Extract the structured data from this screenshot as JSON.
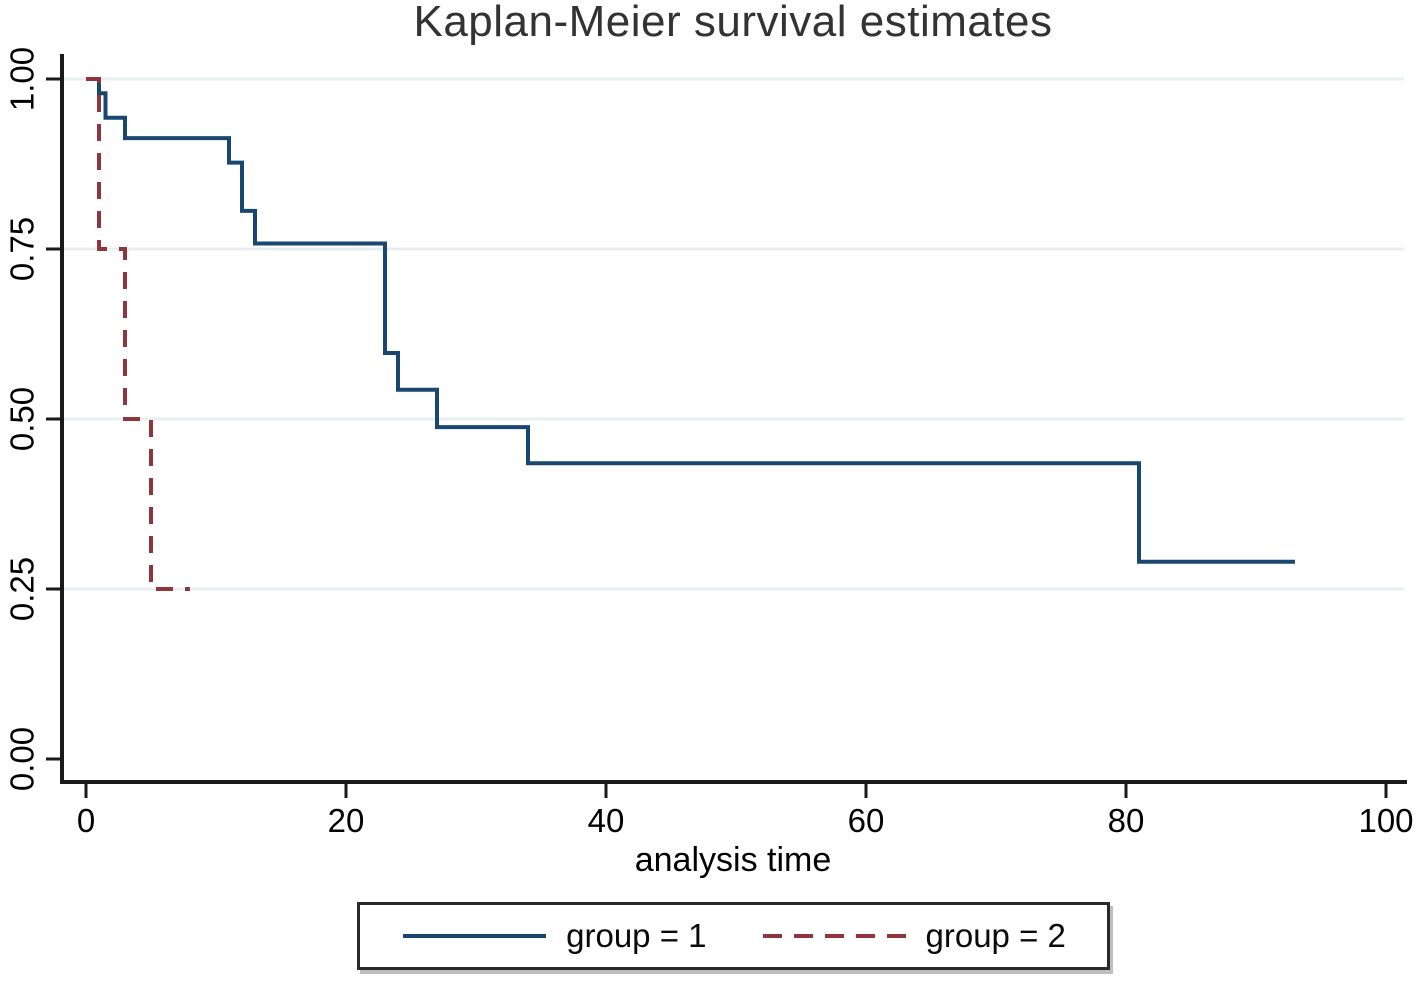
{
  "title": "Kaplan-Meier survival estimates",
  "xlabel": "analysis time",
  "legend": {
    "position": "bottom-center",
    "items": [
      {
        "label": "group = 1",
        "color": "#1a476f",
        "style": "solid"
      },
      {
        "label": "group = 2",
        "color": "#90353b",
        "style": "dashed"
      }
    ]
  },
  "colors": {
    "group1_line": "#1a476f",
    "group2_line": "#90353b",
    "gridline": "#e8eff1",
    "axis": "#1a1a1a",
    "title_text": "#333333",
    "tick_text": "#000000",
    "background": "#ffffff"
  },
  "chart_data": {
    "type": "line",
    "subtype": "kaplan-meier-step",
    "title": "Kaplan-Meier survival estimates",
    "xlabel": "analysis time",
    "ylabel": "",
    "xlim": [
      0,
      100
    ],
    "ylim": [
      0.0,
      1.0
    ],
    "x_ticks": [
      0,
      20,
      40,
      60,
      80,
      100
    ],
    "x_tick_labels": [
      "0",
      "20",
      "40",
      "60",
      "80",
      "100"
    ],
    "y_ticks": [
      0.0,
      0.25,
      0.5,
      0.75,
      1.0
    ],
    "y_tick_labels": [
      "0.00",
      "0.25",
      "0.50",
      "0.75",
      "1.00"
    ],
    "grid": true,
    "grid_values": [
      0.25,
      0.5,
      0.75,
      1.0
    ],
    "legend_position": "bottom",
    "series": [
      {
        "name": "group = 1",
        "color": "#1a476f",
        "line_style": "solid",
        "times": [
          0,
          1,
          1.5,
          3,
          11,
          12,
          13,
          23,
          24,
          27,
          34,
          81
        ],
        "survival": [
          1.0,
          0.979,
          0.943,
          0.913,
          0.877,
          0.806,
          0.758,
          0.597,
          0.543,
          0.488,
          0.435,
          0.29
        ],
        "end_time": 93
      },
      {
        "name": "group = 2",
        "color": "#90353b",
        "line_style": "dashed",
        "times": [
          0,
          1,
          3,
          5
        ],
        "survival": [
          1.0,
          0.75,
          0.5,
          0.25
        ],
        "end_time": 8
      }
    ]
  }
}
